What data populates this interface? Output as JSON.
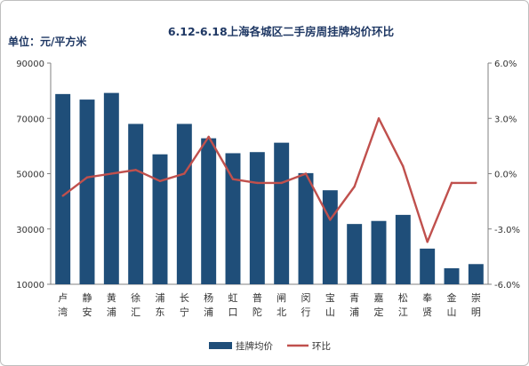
{
  "chart_data": {
    "type": "bar",
    "title": "6.12-6.18上海各城区二手房周挂牌均价环比",
    "unit_label": "单位：元/平方米",
    "categories": [
      "卢湾",
      "静安",
      "黄浦",
      "徐汇",
      "浦东",
      "长宁",
      "杨浦",
      "虹口",
      "普陀",
      "闸北",
      "闵行",
      "宝山",
      "青浦",
      "嘉定",
      "松江",
      "奉贤",
      "金山",
      "崇明"
    ],
    "series": [
      {
        "name": "挂牌均价",
        "type": "bar",
        "axis": "left",
        "color": "#1f4e79",
        "values": [
          78800,
          76800,
          79200,
          68000,
          57000,
          68000,
          62800,
          57400,
          57800,
          61200,
          50200,
          44000,
          31800,
          32900,
          35100,
          22900,
          15800,
          17300
        ]
      },
      {
        "name": "环比",
        "type": "line",
        "axis": "right",
        "color": "#c0504d",
        "values": [
          -1.2,
          -0.2,
          0.0,
          0.2,
          -0.4,
          0.0,
          2.0,
          -0.3,
          -0.5,
          -0.5,
          0.0,
          -2.5,
          -0.7,
          3.0,
          0.4,
          -3.7,
          -0.5,
          -0.5
        ]
      }
    ],
    "ylim_left": [
      10000,
      90000
    ],
    "yticks_left": [
      "10000",
      "30000",
      "50000",
      "70000",
      "90000"
    ],
    "ylim_right": [
      -6.0,
      6.0
    ],
    "yticks_right": [
      "-6.0%",
      "-3.0%",
      "0.0%",
      "3.0%",
      "6.0%"
    ],
    "grid": false,
    "legend_position": "bottom"
  }
}
